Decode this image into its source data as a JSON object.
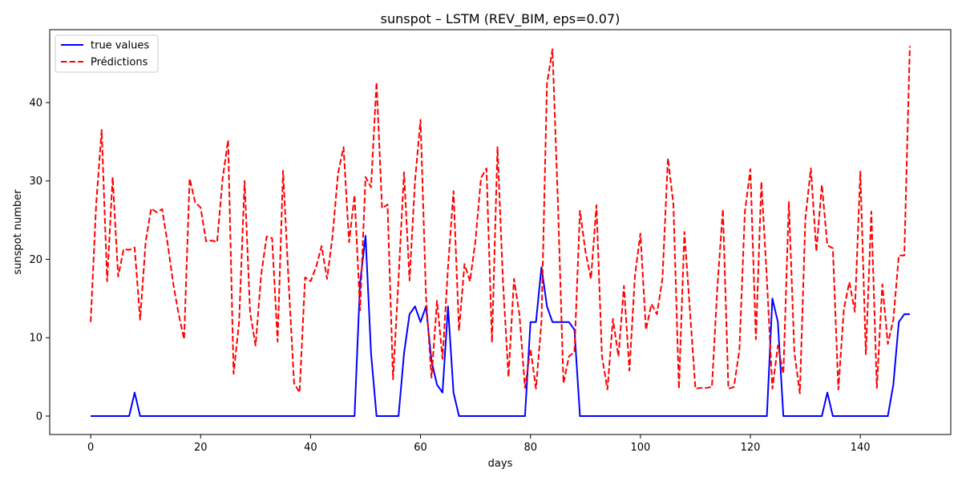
{
  "chart_data": {
    "type": "line",
    "title": "sunspot – LSTM (REV_BIM, eps=0.07)",
    "xlabel": "days",
    "ylabel": "sunspot number",
    "xlim": [
      -7.45,
      156.45
    ],
    "ylim": [
      -2.35,
      49.3
    ],
    "xticks": [
      0,
      20,
      40,
      60,
      80,
      100,
      120,
      140
    ],
    "yticks": [
      0,
      10,
      20,
      30,
      40
    ],
    "grid": false,
    "legend_position": "top-left",
    "series": [
      {
        "name": "true values",
        "color": "#0000ff",
        "style": "solid",
        "x": [
          0,
          1,
          2,
          3,
          4,
          5,
          6,
          7,
          8,
          9,
          10,
          11,
          12,
          13,
          14,
          15,
          16,
          17,
          18,
          19,
          20,
          21,
          22,
          23,
          24,
          25,
          26,
          27,
          28,
          29,
          30,
          31,
          32,
          33,
          34,
          35,
          36,
          37,
          38,
          39,
          40,
          41,
          42,
          43,
          44,
          45,
          46,
          47,
          48,
          49,
          50,
          51,
          52,
          53,
          54,
          55,
          56,
          57,
          58,
          59,
          60,
          61,
          62,
          63,
          64,
          65,
          66,
          67,
          68,
          69,
          70,
          71,
          72,
          73,
          74,
          75,
          76,
          77,
          78,
          79,
          80,
          81,
          82,
          83,
          84,
          85,
          86,
          87,
          88,
          89,
          90,
          91,
          92,
          93,
          94,
          95,
          96,
          97,
          98,
          99,
          100,
          101,
          102,
          103,
          104,
          105,
          106,
          107,
          108,
          109,
          110,
          111,
          112,
          113,
          114,
          115,
          116,
          117,
          118,
          119,
          120,
          121,
          122,
          123,
          124,
          125,
          126,
          127,
          128,
          129,
          130,
          131,
          132,
          133,
          134,
          135,
          136,
          137,
          138,
          139,
          140,
          141,
          142,
          143,
          144,
          145,
          146,
          147,
          148,
          149
        ],
        "y": [
          0,
          0,
          0,
          0,
          0,
          0,
          0,
          0,
          3,
          0,
          0,
          0,
          0,
          0,
          0,
          0,
          0,
          0,
          0,
          0,
          0,
          0,
          0,
          0,
          0,
          0,
          0,
          0,
          0,
          0,
          0,
          0,
          0,
          0,
          0,
          0,
          0,
          0,
          0,
          0,
          0,
          0,
          0,
          0,
          0,
          0,
          0,
          0,
          0,
          17,
          23,
          8,
          0,
          0,
          0,
          0,
          0,
          8,
          13,
          14,
          12,
          14,
          7,
          4,
          3,
          14,
          3,
          0,
          0,
          0,
          0,
          0,
          0,
          0,
          0,
          0,
          0,
          0,
          0,
          0,
          12,
          12,
          19,
          14,
          12,
          12,
          12,
          12,
          11,
          0,
          0,
          0,
          0,
          0,
          0,
          0,
          0,
          0,
          0,
          0,
          0,
          0,
          0,
          0,
          0,
          0,
          0,
          0,
          0,
          0,
          0,
          0,
          0,
          0,
          0,
          0,
          0,
          0,
          0,
          0,
          0,
          0,
          0,
          0,
          15,
          12,
          0,
          0,
          0,
          0,
          0,
          0,
          0,
          0,
          3,
          0,
          0,
          0,
          0,
          0,
          0,
          0,
          0,
          0,
          0,
          0,
          4,
          12,
          13,
          13
        ]
      },
      {
        "name": "Prédictions",
        "color": "#ff0000",
        "style": "dashed",
        "x": [
          0,
          1,
          2,
          3,
          4,
          5,
          6,
          7,
          8,
          9,
          10,
          11,
          12,
          13,
          14,
          15,
          16,
          17,
          18,
          19,
          20,
          21,
          22,
          23,
          24,
          25,
          26,
          27,
          28,
          29,
          30,
          31,
          32,
          33,
          34,
          35,
          36,
          37,
          38,
          39,
          40,
          41,
          42,
          43,
          44,
          45,
          46,
          47,
          48,
          49,
          50,
          51,
          52,
          53,
          54,
          55,
          56,
          57,
          58,
          59,
          60,
          61,
          62,
          63,
          64,
          65,
          66,
          67,
          68,
          69,
          70,
          71,
          72,
          73,
          74,
          75,
          76,
          77,
          78,
          79,
          80,
          81,
          82,
          83,
          84,
          85,
          86,
          87,
          88,
          89,
          90,
          91,
          92,
          93,
          94,
          95,
          96,
          97,
          98,
          99,
          100,
          101,
          102,
          103,
          104,
          105,
          106,
          107,
          108,
          109,
          110,
          111,
          112,
          113,
          114,
          115,
          116,
          117,
          118,
          119,
          120,
          121,
          122,
          123,
          124,
          125,
          126,
          127,
          128,
          129,
          130,
          131,
          132,
          133,
          134,
          135,
          136,
          137,
          138,
          139,
          140,
          141,
          142,
          143,
          144,
          145,
          146,
          147,
          148,
          149
        ],
        "y": [
          12,
          27,
          36.5,
          17.2,
          30.5,
          17.8,
          21.3,
          21.2,
          21.5,
          12.3,
          22.2,
          26.5,
          26,
          26.4,
          22,
          17,
          13,
          9.8,
          30.3,
          27.3,
          26.6,
          22.3,
          22.4,
          22.2,
          30.3,
          35.2,
          5.4,
          12,
          30,
          13.2,
          9,
          17.9,
          22.9,
          22.7,
          9.5,
          31.3,
          17.2,
          4.2,
          3,
          17.7,
          17.2,
          19,
          21.7,
          17.5,
          23,
          31,
          34.3,
          22.2,
          28.2,
          13.5,
          30.5,
          29.2,
          42.6,
          26.5,
          27,
          4.7,
          17.5,
          31.1,
          17.3,
          30,
          37.8,
          15.2,
          4.9,
          14.7,
          7.3,
          19,
          28.7,
          10.9,
          19.4,
          17.2,
          22.4,
          30.4,
          31.6,
          9.4,
          34.3,
          17.1,
          5,
          17.5,
          12.9,
          3.6,
          8.6,
          3.5,
          12.1,
          42.4,
          46.8,
          27,
          4.2,
          7.6,
          8.2,
          26.2,
          21,
          17.5,
          26.9,
          7.6,
          3.4,
          12.4,
          7.6,
          16.6,
          5.8,
          17.9,
          23.3,
          11,
          14.3,
          13,
          17.5,
          32.9,
          27,
          3.5,
          23.5,
          13.5,
          3.5,
          3.6,
          3.6,
          3.7,
          16.5,
          26.4,
          3.5,
          3.7,
          8.4,
          26.1,
          31.5,
          9.8,
          29.9,
          17.5,
          3.5,
          9,
          5.4,
          27.3,
          8.1,
          2.9,
          25.2,
          31.6,
          21,
          29.5,
          21.8,
          21.4,
          3.4,
          13.6,
          17.1,
          13.3,
          31.2,
          7.9,
          26.1,
          3.6,
          16.8,
          9.2,
          12.3,
          20.5,
          20.5,
          47.2
        ]
      }
    ]
  }
}
